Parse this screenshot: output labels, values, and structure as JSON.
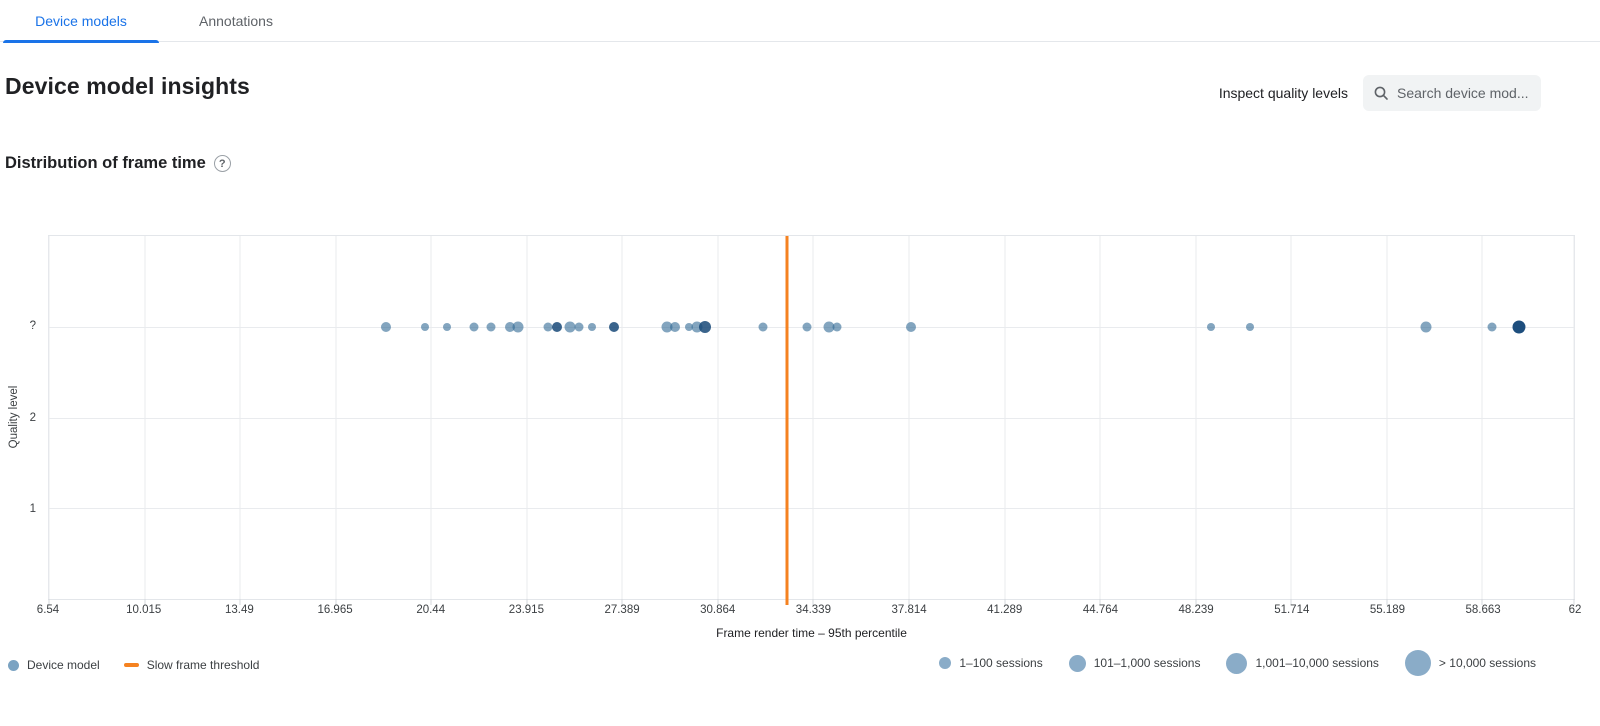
{
  "tabs": [
    {
      "label": "Device models",
      "active": true
    },
    {
      "label": "Annotations",
      "active": false
    }
  ],
  "header": {
    "title": "Device model insights",
    "inspect_link": "Inspect quality levels",
    "search_placeholder": "Search device mod..."
  },
  "section": {
    "title": "Distribution of frame time"
  },
  "chart_data": {
    "type": "scatter",
    "title": "Distribution of frame time",
    "xlabel": "Frame render time – 95th percentile",
    "ylabel": "Quality level",
    "xlim": [
      6.54,
      62
    ],
    "x_ticks": [
      6.54,
      10.015,
      13.49,
      16.965,
      20.44,
      23.915,
      27.389,
      30.864,
      34.339,
      37.814,
      41.289,
      44.764,
      48.239,
      51.714,
      55.189,
      58.663,
      62
    ],
    "x_tick_labels": [
      "6.54",
      "10.015",
      "13.49",
      "16.965",
      "20.44",
      "23.915",
      "27.389",
      "30.864",
      "34.339",
      "37.814",
      "41.289",
      "44.764",
      "48.239",
      "51.714",
      "55.189",
      "58.663",
      "62"
    ],
    "y_categories": [
      "?",
      "2",
      "1"
    ],
    "grid": true,
    "legend_position": "bottom",
    "threshold": {
      "label": "Slow frame threshold",
      "value": 33.38,
      "color": "#f58220"
    },
    "points": [
      {
        "x": 18.8,
        "y": "?",
        "r": 5,
        "shade": "light"
      },
      {
        "x": 20.2,
        "y": "?",
        "r": 4,
        "shade": "light"
      },
      {
        "x": 21.0,
        "y": "?",
        "r": 4,
        "shade": "light"
      },
      {
        "x": 22.0,
        "y": "?",
        "r": 4.5,
        "shade": "light"
      },
      {
        "x": 22.6,
        "y": "?",
        "r": 4.5,
        "shade": "light"
      },
      {
        "x": 23.3,
        "y": "?",
        "r": 5,
        "shade": "light"
      },
      {
        "x": 23.6,
        "y": "?",
        "r": 5.5,
        "shade": "light"
      },
      {
        "x": 24.7,
        "y": "?",
        "r": 4.5,
        "shade": "light"
      },
      {
        "x": 25.0,
        "y": "?",
        "r": 5,
        "shade": "dark"
      },
      {
        "x": 25.5,
        "y": "?",
        "r": 5.5,
        "shade": "light"
      },
      {
        "x": 25.8,
        "y": "?",
        "r": 4.5,
        "shade": "light"
      },
      {
        "x": 26.3,
        "y": "?",
        "r": 4,
        "shade": "light"
      },
      {
        "x": 27.1,
        "y": "?",
        "r": 5,
        "shade": "dark"
      },
      {
        "x": 29.0,
        "y": "?",
        "r": 5.5,
        "shade": "light"
      },
      {
        "x": 29.3,
        "y": "?",
        "r": 5,
        "shade": "light"
      },
      {
        "x": 29.8,
        "y": "?",
        "r": 4,
        "shade": "light"
      },
      {
        "x": 30.1,
        "y": "?",
        "r": 5.5,
        "shade": "light"
      },
      {
        "x": 30.4,
        "y": "?",
        "r": 6,
        "shade": "dark"
      },
      {
        "x": 32.5,
        "y": "?",
        "r": 4.5,
        "shade": "light"
      },
      {
        "x": 34.1,
        "y": "?",
        "r": 4.5,
        "shade": "light"
      },
      {
        "x": 34.9,
        "y": "?",
        "r": 5.5,
        "shade": "light"
      },
      {
        "x": 35.2,
        "y": "?",
        "r": 4.5,
        "shade": "light"
      },
      {
        "x": 37.9,
        "y": "?",
        "r": 5,
        "shade": "light"
      },
      {
        "x": 48.8,
        "y": "?",
        "r": 4,
        "shade": "light"
      },
      {
        "x": 50.2,
        "y": "?",
        "r": 4,
        "shade": "light"
      },
      {
        "x": 56.6,
        "y": "?",
        "r": 5.5,
        "shade": "light"
      },
      {
        "x": 59.0,
        "y": "?",
        "r": 4.5,
        "shade": "light"
      },
      {
        "x": 60.0,
        "y": "?",
        "r": 6.5,
        "shade": "navy"
      }
    ]
  },
  "legend_left": [
    {
      "label": "Device model",
      "swatch": "dot",
      "color": "#7ba3c2"
    },
    {
      "label": "Slow frame threshold",
      "swatch": "dash",
      "color": "#f58220"
    }
  ],
  "legend_sizes": [
    {
      "label": "1–100 sessions",
      "d": 12
    },
    {
      "label": "101–1,000 sessions",
      "d": 17
    },
    {
      "label": "1,001–10,000 sessions",
      "d": 21
    },
    {
      "label": "> 10,000 sessions",
      "d": 26
    }
  ],
  "colors": {
    "tab_active": "#1a73e8",
    "dot_light": "rgba(49,105,148,0.6)",
    "dot_dark": "rgba(23,73,120,0.85)",
    "dot_navy": "#1d4e7d",
    "threshold": "#f58220",
    "bubble_legend": "#8aacc8"
  }
}
